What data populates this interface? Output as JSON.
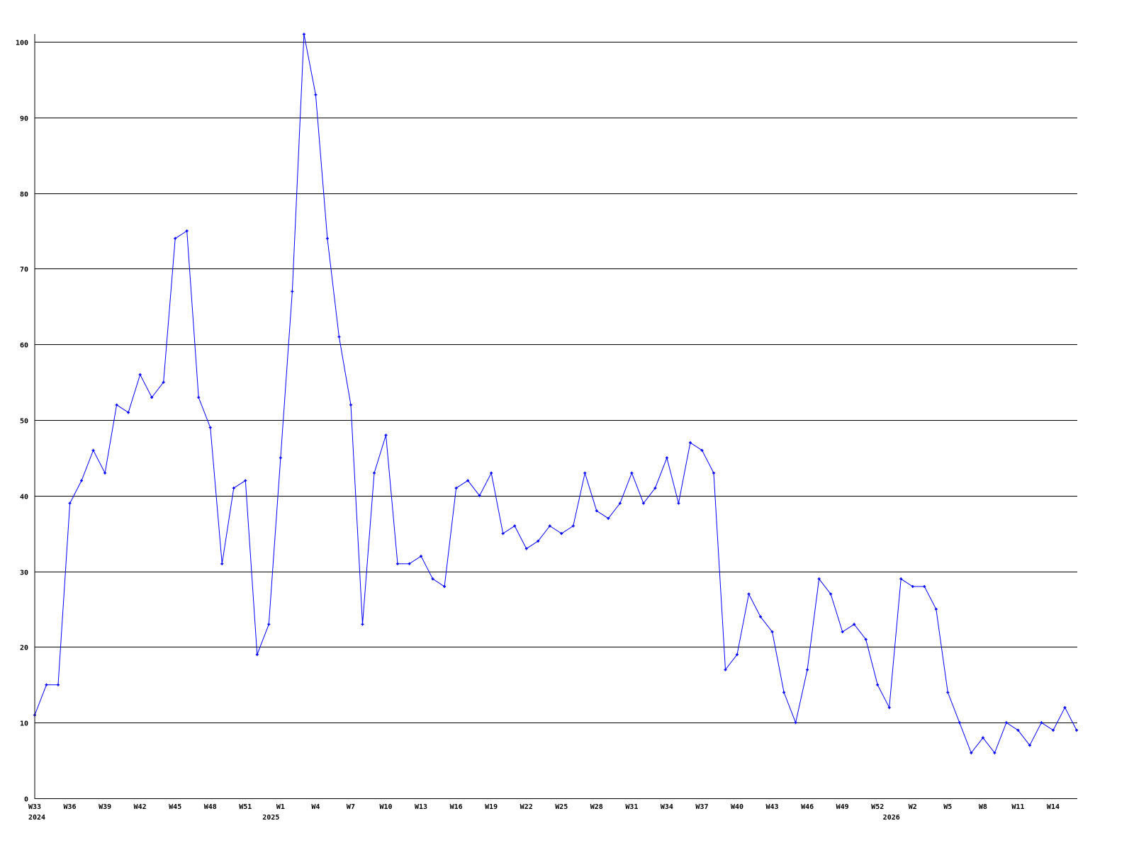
{
  "chart_data": {
    "type": "line",
    "title": "",
    "xlabel": "",
    "ylabel": "",
    "ylim": [
      0,
      100
    ],
    "yticks": [
      0,
      10,
      20,
      30,
      40,
      50,
      60,
      70,
      80,
      90,
      100
    ],
    "grid": "horizontal",
    "colors": {
      "line": "#0000ff",
      "grid": "#000000",
      "axis": "#000000"
    },
    "categories": [
      "W33",
      "W34",
      "W35",
      "W36",
      "W37",
      "W38",
      "W39",
      "W40",
      "W41",
      "W42",
      "W43",
      "W44",
      "W45",
      "W46",
      "W47",
      "W48",
      "W49",
      "W50",
      "W51",
      "W52",
      "W53",
      "W1",
      "W2",
      "W3",
      "W4",
      "W5",
      "W6",
      "W7",
      "W8",
      "W9",
      "W10",
      "W11",
      "W12",
      "W13",
      "W14",
      "W15",
      "W16",
      "W17",
      "W18",
      "W19",
      "W20",
      "W21",
      "W22",
      "W23",
      "W24",
      "W25",
      "W26",
      "W27",
      "W28",
      "W29",
      "W30",
      "W31",
      "W32",
      "W33",
      "W34",
      "W35",
      "W36",
      "W37",
      "W38",
      "W39",
      "W40",
      "W41",
      "W42",
      "W43",
      "W44",
      "W45",
      "W46",
      "W47",
      "W48",
      "W49",
      "W50",
      "W51",
      "W52",
      "W53",
      "W1",
      "W2",
      "W3",
      "W4",
      "W5",
      "W6",
      "W7",
      "W8",
      "W9",
      "W10",
      "W11",
      "W12",
      "W13",
      "W14",
      "W15",
      "W16"
    ],
    "values": [
      11,
      15,
      15,
      39,
      42,
      46,
      43,
      52,
      51,
      56,
      53,
      55,
      74,
      75,
      53,
      49,
      31,
      41,
      42,
      19,
      23,
      45,
      67,
      101,
      93,
      74,
      61,
      52,
      23,
      43,
      48,
      31,
      31,
      32,
      29,
      28,
      41,
      42,
      40,
      43,
      35,
      36,
      33,
      34,
      36,
      35,
      36,
      43,
      38,
      37,
      39,
      43,
      39,
      41,
      45,
      39,
      47,
      46,
      43,
      17,
      19,
      27,
      24,
      22,
      14,
      10,
      17,
      29,
      27,
      22,
      23,
      21,
      15,
      12,
      29,
      28,
      28,
      25,
      14,
      10,
      6,
      8,
      6,
      10,
      9,
      7,
      10,
      9,
      12,
      9
    ],
    "xtick_every": 3,
    "year_labels": [
      {
        "label": "2024",
        "category_index": 0
      },
      {
        "label": "2025",
        "category_index": 20
      },
      {
        "label": "2026",
        "category_index": 73
      }
    ]
  }
}
